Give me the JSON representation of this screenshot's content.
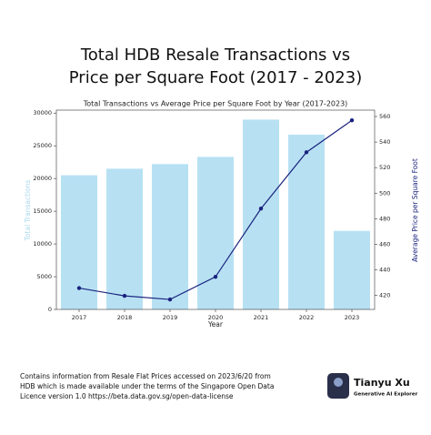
{
  "page": {
    "title_lines": [
      "Total HDB Resale Transactions vs",
      "Price per Square Foot (2017 - 2023)"
    ],
    "footer_lines": [
      "Contains information from Resale Flat Prices accessed on 2023/6/20 from",
      "HDB which is made available under the terms of the Singapore Open Data",
      "Licence version 1.0 https://beta.data.gov.sg/open-data-license"
    ],
    "author": {
      "name": "Tianyu Xu",
      "role": "Generative AI Explorer"
    }
  },
  "chart_data": {
    "type": "bar_line",
    "title": "Total Transactions vs Average Price per Square Foot by Year (2017-2023)",
    "x_label": "Year",
    "y_label": "Total Transactions",
    "y2_label": "Average Price per Square Foot",
    "categories": [
      "2017",
      "2018",
      "2019",
      "2020",
      "2021",
      "2022",
      "2023"
    ],
    "series": [
      {
        "name": "Total Transactions",
        "type": "bar",
        "color": "#b7e1f3",
        "values": [
          20500,
          21500,
          22200,
          23300,
          29000,
          26700,
          12000
        ]
      },
      {
        "name": "Average Price per Square Foot",
        "type": "line",
        "axis": "y2",
        "color": "#1a237e",
        "values": [
          425.7,
          419.6,
          416.8,
          434.5,
          487.9,
          532,
          557
        ]
      }
    ],
    "ylim": [
      0,
      30450
    ],
    "yticks": [
      0,
      5000,
      10000,
      15000,
      20000,
      25000,
      30000
    ],
    "y2lim": [
      409,
      565
    ],
    "y2ticks": [
      420,
      440,
      460,
      480,
      500,
      520,
      540,
      560
    ]
  }
}
